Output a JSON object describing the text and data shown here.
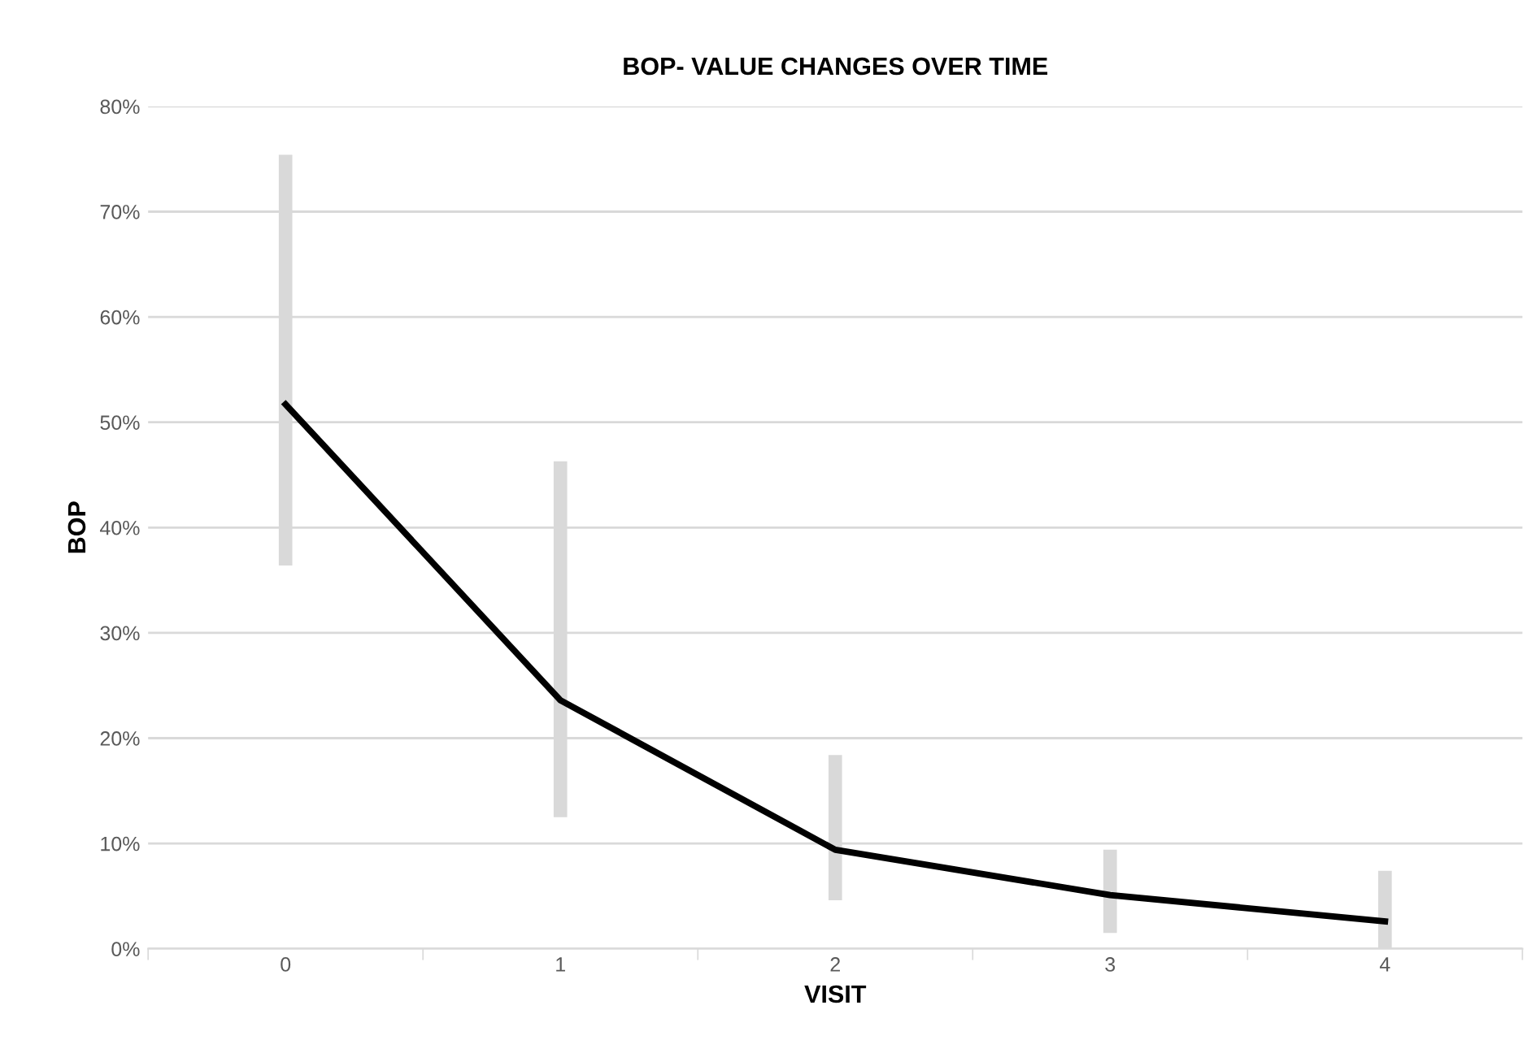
{
  "chart_data": {
    "type": "line",
    "title": "BOP- VALUE CHANGES OVER TIME",
    "xlabel": "VISIT",
    "ylabel": "BOP",
    "categories": [
      "0",
      "1",
      "2",
      "3",
      "4"
    ],
    "series": [
      {
        "color": "#000000",
        "values": [
          51.7,
          23.6,
          9.4,
          5.1,
          2.6
        ],
        "errors": [
          [
            36.4,
            75.4
          ],
          [
            12.5,
            46.3
          ],
          [
            4.6,
            18.4
          ],
          [
            1.5,
            9.4
          ],
          [
            0,
            7.4
          ]
        ]
      }
    ],
    "ylim": [
      0,
      80
    ],
    "yticks": [
      {
        "value": 0,
        "label": "0%"
      },
      {
        "value": 10,
        "label": "10%"
      },
      {
        "value": 20,
        "label": "20%"
      },
      {
        "value": 30,
        "label": "30%"
      },
      {
        "value": 40,
        "label": "40%"
      },
      {
        "value": 50,
        "label": "50%"
      },
      {
        "value": 60,
        "label": "60%"
      },
      {
        "value": 70,
        "label": "70%"
      },
      {
        "value": 80,
        "label": "80%"
      }
    ],
    "grid": "y",
    "marker": "none",
    "line_style": "solid"
  }
}
